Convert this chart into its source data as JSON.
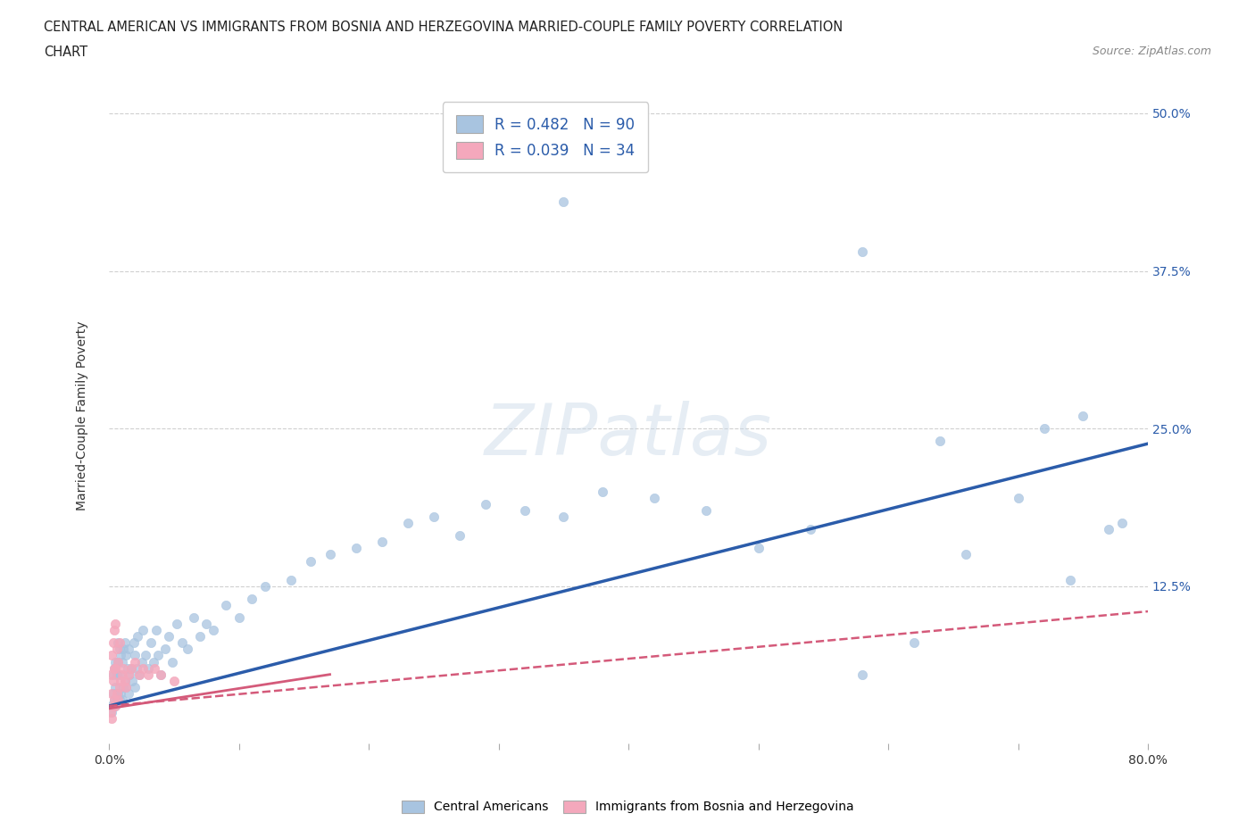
{
  "title_line1": "CENTRAL AMERICAN VS IMMIGRANTS FROM BOSNIA AND HERZEGOVINA MARRIED-COUPLE FAMILY POVERTY CORRELATION",
  "title_line2": "CHART",
  "source_text": "Source: ZipAtlas.com",
  "ylabel": "Married-Couple Family Poverty",
  "watermark": "ZIPatlas",
  "blue_R": 0.482,
  "blue_N": 90,
  "pink_R": 0.039,
  "pink_N": 34,
  "blue_color": "#a8c4e0",
  "blue_line_color": "#2b5caa",
  "pink_color": "#f4a8bc",
  "pink_line_color": "#d45a7a",
  "xlim": [
    0.0,
    0.8
  ],
  "ylim": [
    0.0,
    0.52
  ],
  "ytick_positions": [
    0.0,
    0.125,
    0.25,
    0.375,
    0.5
  ],
  "ytick_labels_right": [
    "",
    "12.5%",
    "25.0%",
    "37.5%",
    "50.0%"
  ],
  "grid_color": "#d0d0d0",
  "background_color": "#ffffff",
  "legend_label_blue": "Central Americans",
  "legend_label_pink": "Immigrants from Bosnia and Herzegovina",
  "blue_line_start_y": 0.03,
  "blue_line_end_y": 0.238,
  "pink_line_start_y": 0.03,
  "pink_line_end_y": 0.105,
  "blue_x": [
    0.001,
    0.002,
    0.003,
    0.003,
    0.004,
    0.004,
    0.005,
    0.005,
    0.005,
    0.006,
    0.006,
    0.007,
    0.007,
    0.007,
    0.008,
    0.008,
    0.008,
    0.009,
    0.009,
    0.01,
    0.01,
    0.011,
    0.011,
    0.012,
    0.012,
    0.013,
    0.013,
    0.014,
    0.015,
    0.015,
    0.016,
    0.017,
    0.018,
    0.019,
    0.02,
    0.02,
    0.021,
    0.022,
    0.023,
    0.025,
    0.026,
    0.028,
    0.03,
    0.032,
    0.034,
    0.036,
    0.038,
    0.04,
    0.043,
    0.046,
    0.049,
    0.052,
    0.056,
    0.06,
    0.065,
    0.07,
    0.075,
    0.08,
    0.09,
    0.1,
    0.11,
    0.12,
    0.14,
    0.155,
    0.17,
    0.19,
    0.21,
    0.23,
    0.25,
    0.27,
    0.29,
    0.32,
    0.35,
    0.38,
    0.42,
    0.46,
    0.5,
    0.54,
    0.58,
    0.62,
    0.66,
    0.7,
    0.74,
    0.77,
    0.35,
    0.58,
    0.64,
    0.72,
    0.75,
    0.78
  ],
  "blue_y": [
    0.03,
    0.025,
    0.04,
    0.055,
    0.035,
    0.06,
    0.03,
    0.045,
    0.065,
    0.035,
    0.055,
    0.04,
    0.065,
    0.08,
    0.035,
    0.055,
    0.075,
    0.04,
    0.07,
    0.035,
    0.065,
    0.045,
    0.075,
    0.05,
    0.08,
    0.045,
    0.07,
    0.06,
    0.04,
    0.075,
    0.055,
    0.06,
    0.05,
    0.08,
    0.045,
    0.07,
    0.06,
    0.085,
    0.055,
    0.065,
    0.09,
    0.07,
    0.06,
    0.08,
    0.065,
    0.09,
    0.07,
    0.055,
    0.075,
    0.085,
    0.065,
    0.095,
    0.08,
    0.075,
    0.1,
    0.085,
    0.095,
    0.09,
    0.11,
    0.1,
    0.115,
    0.125,
    0.13,
    0.145,
    0.15,
    0.155,
    0.16,
    0.175,
    0.18,
    0.165,
    0.19,
    0.185,
    0.18,
    0.2,
    0.195,
    0.185,
    0.155,
    0.17,
    0.055,
    0.08,
    0.15,
    0.195,
    0.13,
    0.17,
    0.43,
    0.39,
    0.24,
    0.25,
    0.26,
    0.175
  ],
  "pink_x": [
    0.001,
    0.001,
    0.002,
    0.002,
    0.002,
    0.003,
    0.003,
    0.003,
    0.004,
    0.004,
    0.004,
    0.005,
    0.005,
    0.005,
    0.006,
    0.006,
    0.007,
    0.007,
    0.008,
    0.008,
    0.009,
    0.01,
    0.011,
    0.012,
    0.013,
    0.015,
    0.017,
    0.02,
    0.023,
    0.026,
    0.03,
    0.035,
    0.04,
    0.05
  ],
  "pink_y": [
    0.025,
    0.055,
    0.02,
    0.04,
    0.07,
    0.03,
    0.05,
    0.08,
    0.035,
    0.06,
    0.09,
    0.03,
    0.06,
    0.095,
    0.04,
    0.075,
    0.035,
    0.065,
    0.045,
    0.08,
    0.05,
    0.055,
    0.06,
    0.05,
    0.045,
    0.055,
    0.06,
    0.065,
    0.055,
    0.06,
    0.055,
    0.06,
    0.055,
    0.05
  ]
}
